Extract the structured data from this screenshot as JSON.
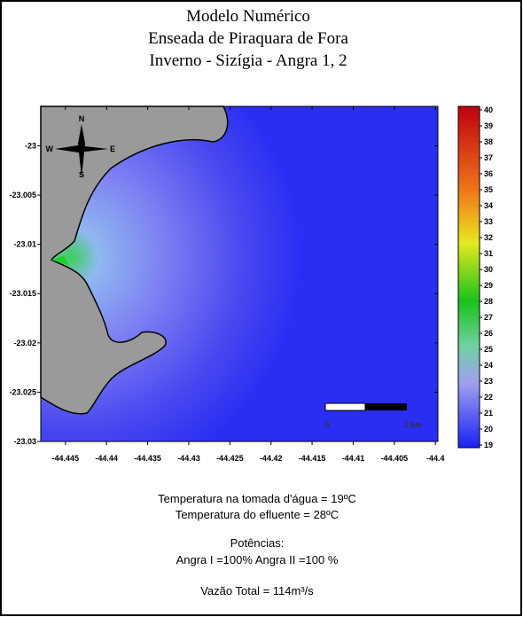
{
  "header": {
    "title_lines": [
      "Modelo Numérico",
      "Enseada de Piraquara de Fora",
      "Inverno - Sizígia - Angra 1, 2"
    ]
  },
  "map": {
    "xlim": [
      -44.448,
      -44.3997
    ],
    "ylim": [
      -23.03,
      -22.996
    ],
    "xticks": [
      -44.445,
      -44.44,
      -44.435,
      -44.43,
      -44.425,
      -44.42,
      -44.415,
      -44.41,
      -44.405,
      -44.4
    ],
    "yticks": [
      -23,
      -23.005,
      -23.01,
      -23.015,
      -23.02,
      -23.025,
      -23.03
    ],
    "compass": [
      "N",
      "S",
      "W",
      "E"
    ],
    "scale_bar": [
      "0",
      "1 km"
    ]
  },
  "colorbar": {
    "range": [
      19,
      40
    ],
    "ticks": [
      19,
      20,
      21,
      22,
      23,
      24,
      25,
      26,
      27,
      28,
      29,
      30,
      31,
      32,
      33,
      34,
      35,
      36,
      37,
      38,
      39,
      40
    ]
  },
  "captions": [
    "Temperatura na tomada d'água = 19ºC",
    "Temperatura do efluente = 28ºC",
    "Potências:",
    "Angra I =100%  Angra II =100 %",
    "Vazão Total = 114m³/s"
  ]
}
